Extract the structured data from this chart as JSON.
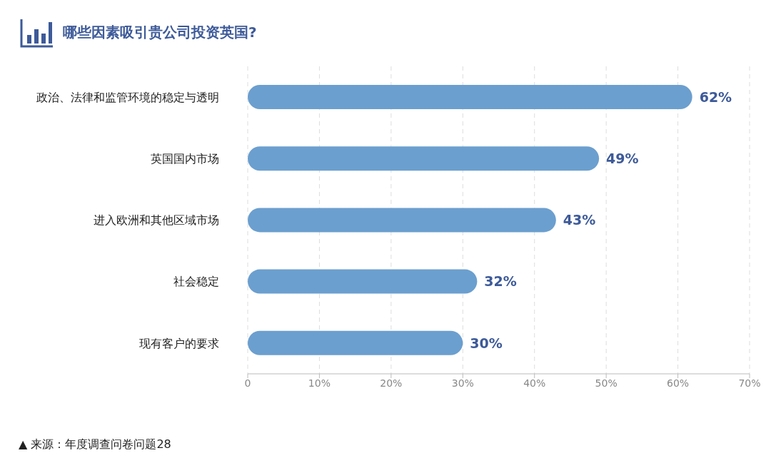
{
  "chart_data": {
    "type": "bar",
    "orientation": "horizontal",
    "title": "哪些因素吸引贵公司投资英国?",
    "categories": [
      "政治、法律和监管环境的稳定与透明",
      "英国国内市场",
      "进入欧洲和其他区域市场",
      "社会稳定",
      "现有客户的要求"
    ],
    "values": [
      62,
      49,
      43,
      32,
      30
    ],
    "value_labels": [
      "62%",
      "49%",
      "43%",
      "32%",
      "30%"
    ],
    "color": "#6b9fcf",
    "xlim": [
      0,
      70
    ],
    "xticks": [
      0,
      {
        "value": 10,
        "label": "10%"
      },
      {
        "value": 20,
        "label": "20%"
      },
      {
        "value": 30,
        "label": "30%"
      },
      {
        "value": 40,
        "label": "40%"
      },
      {
        "value": 50,
        "label": "50%"
      },
      {
        "value": 60,
        "label": "60%"
      },
      {
        "value": 70,
        "label": "70%"
      }
    ],
    "grid": "x",
    "annotations": [
      "▲ 来源：年度调查问卷问题28"
    ]
  }
}
